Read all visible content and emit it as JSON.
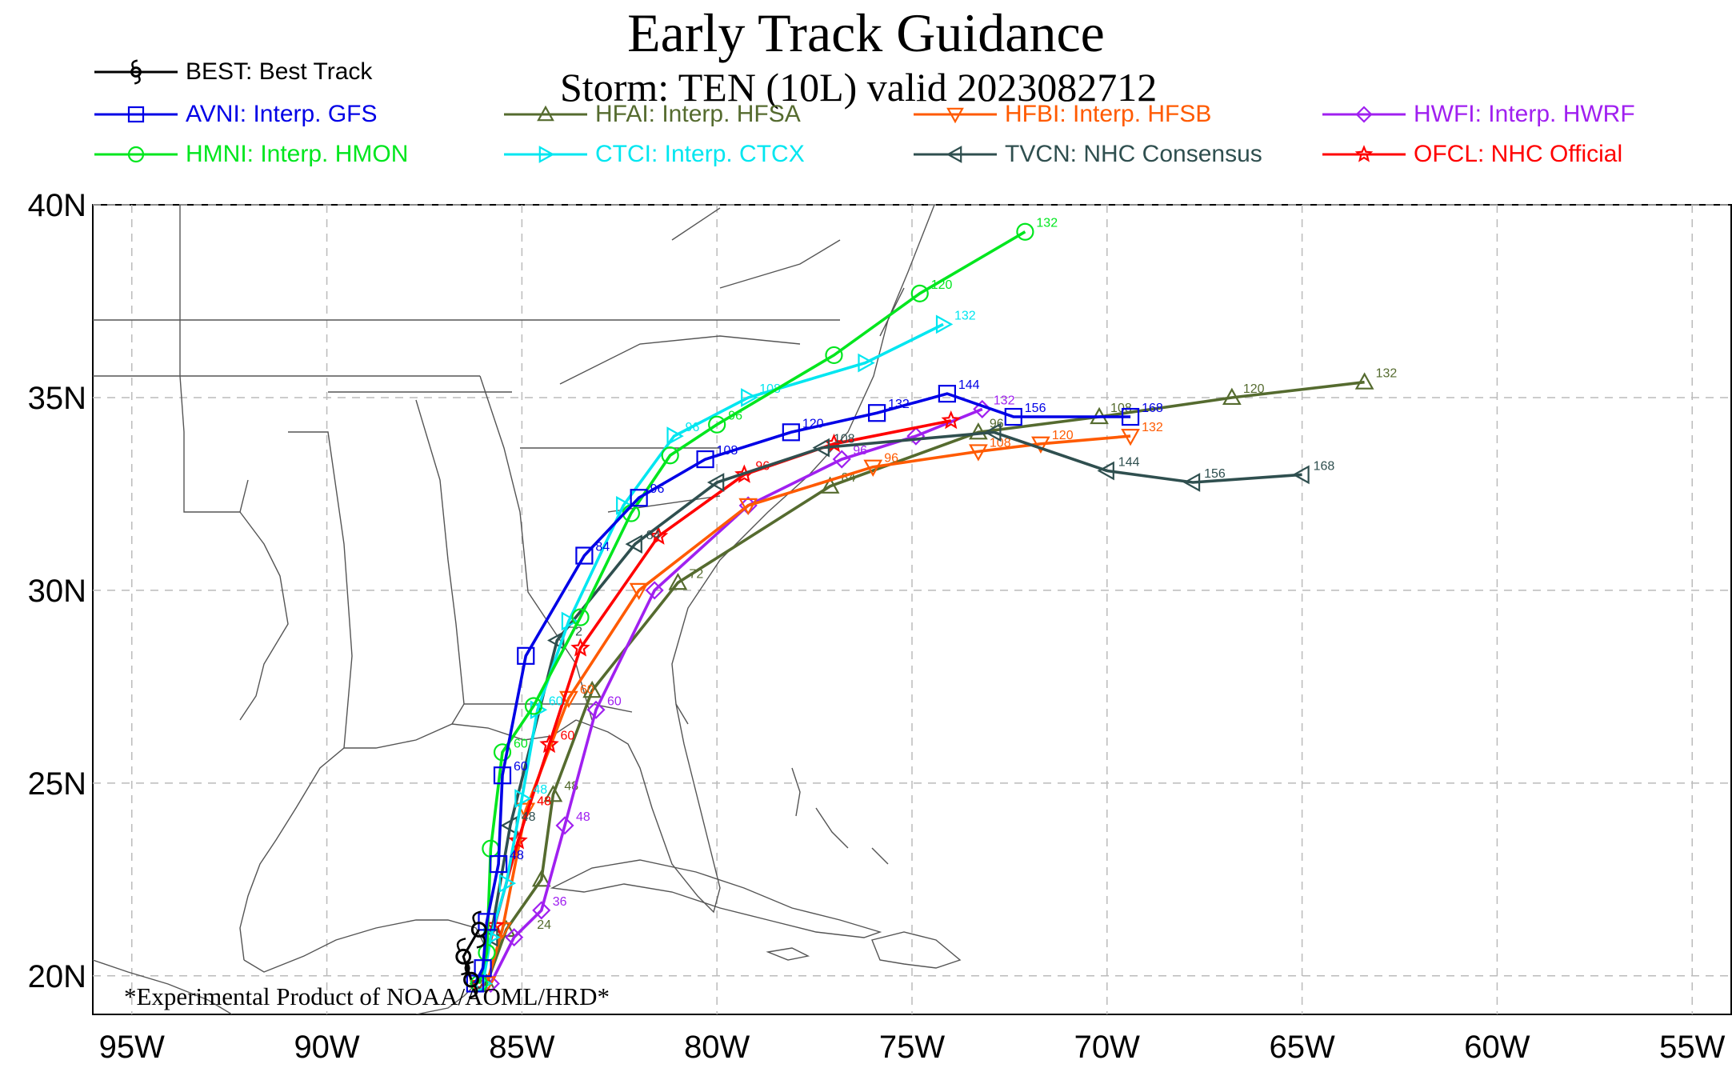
{
  "title": "Early Track Guidance",
  "subtitle": "Storm: TEN (10L) valid 2023082712",
  "footnote": "*Experimental Product of NOAA/AOML/HRD*",
  "axes": {
    "lon_labels": [
      "95W",
      "90W",
      "85W",
      "80W",
      "75W",
      "70W",
      "65W",
      "60W",
      "55W"
    ],
    "lat_labels": [
      "40N",
      "35N",
      "30N",
      "25N",
      "20N"
    ]
  },
  "legend": [
    {
      "code": "BEST",
      "label": "BEST: Best Track",
      "color": "#000000",
      "marker": "hurricane",
      "text_color": "#000000"
    },
    {
      "code": "AVNI",
      "label": "AVNI: Interp. GFS",
      "color": "#0000e6",
      "marker": "square",
      "text_color": "#0000e6"
    },
    {
      "code": "HFAI",
      "label": "HFAI: Interp. HFSA",
      "color": "#556b2f",
      "marker": "triangle-up",
      "text_color": "#556b2f"
    },
    {
      "code": "HFBI",
      "label": "HFBI: Interp. HFSB",
      "color": "#ff5a00",
      "marker": "triangle-down",
      "text_color": "#ff5a00"
    },
    {
      "code": "HWFI",
      "label": "HWFI: Interp. HWRF",
      "color": "#a020f0",
      "marker": "diamond",
      "text_color": "#a020f0"
    },
    {
      "code": "HMNI",
      "label": "HMNI: Interp. HMON",
      "color": "#00e61e",
      "marker": "circle",
      "text_color": "#00e61e"
    },
    {
      "code": "CTCI",
      "label": "CTCI: Interp. CTCX",
      "color": "#00e6f0",
      "marker": "triangle-right",
      "text_color": "#00e6f0"
    },
    {
      "code": "TVCN",
      "label": "TVCN: NHC Consensus",
      "color": "#2f4f4f",
      "marker": "triangle-left",
      "text_color": "#2f4f4f"
    },
    {
      "code": "OFCL",
      "label": "OFCL: NHC Official",
      "color": "#ff0000",
      "marker": "star",
      "text_color": "#ff0000"
    }
  ],
  "chart_data": {
    "type": "map",
    "region": "Gulf of Mexico / Western Atlantic",
    "lon_range": [
      -96,
      -54
    ],
    "lat_range": [
      19,
      40
    ],
    "grid": true,
    "tracks": [
      {
        "code": "BEST",
        "points": [
          [
            -86.1,
            21.2
          ],
          [
            -86.5,
            20.5
          ],
          [
            -86.3,
            19.9
          ]
        ]
      },
      {
        "code": "AVNI",
        "points": [
          [
            -86.2,
            19.8
          ],
          [
            -86.0,
            20.2
          ],
          [
            -85.9,
            21.4
          ],
          [
            -85.6,
            22.9
          ],
          [
            -85.5,
            25.2
          ],
          [
            -84.9,
            28.3
          ],
          [
            -83.4,
            30.9
          ],
          [
            -82.0,
            32.4
          ],
          [
            -80.3,
            33.4
          ],
          [
            -78.1,
            34.1
          ],
          [
            -75.9,
            34.6
          ],
          [
            -74.1,
            35.1
          ],
          [
            -72.4,
            34.5
          ],
          [
            -69.4,
            34.5
          ]
        ],
        "labels": [
          {
            "t": "48",
            "lon": -85.6,
            "lat": 22.9
          },
          {
            "t": "60",
            "lon": -85.5,
            "lat": 25.2
          },
          {
            "t": "84",
            "lon": -83.4,
            "lat": 30.9
          },
          {
            "t": "96",
            "lon": -82.0,
            "lat": 32.4
          },
          {
            "t": "108",
            "lon": -80.3,
            "lat": 33.4
          },
          {
            "t": "120",
            "lon": -78.1,
            "lat": 34.1
          },
          {
            "t": "132",
            "lon": -75.9,
            "lat": 34.6
          },
          {
            "t": "144",
            "lon": -74.1,
            "lat": 35.1
          },
          {
            "t": "156",
            "lon": -72.4,
            "lat": 34.5
          },
          {
            "t": "168",
            "lon": -69.4,
            "lat": 34.5
          }
        ]
      },
      {
        "code": "HMNI",
        "points": [
          [
            -86.1,
            19.8
          ],
          [
            -85.9,
            20.6
          ],
          [
            -85.8,
            23.3
          ],
          [
            -85.5,
            25.8
          ],
          [
            -84.7,
            27.0
          ],
          [
            -83.5,
            29.3
          ],
          [
            -82.2,
            32.0
          ],
          [
            -81.2,
            33.5
          ],
          [
            -80.0,
            34.3
          ],
          [
            -77.0,
            36.1
          ],
          [
            -74.8,
            37.7
          ],
          [
            -72.1,
            39.3
          ]
        ],
        "labels": [
          {
            "t": "60",
            "lon": -85.5,
            "lat": 25.8
          },
          {
            "t": "96",
            "lon": -80.0,
            "lat": 34.3
          },
          {
            "t": "120",
            "lon": -74.8,
            "lat": 37.7
          },
          {
            "t": "132",
            "lon": -72.1,
            "lat": 39.3
          }
        ]
      },
      {
        "code": "CTCI",
        "points": [
          [
            -86.0,
            19.8
          ],
          [
            -85.8,
            21.0
          ],
          [
            -85.4,
            22.4
          ],
          [
            -85.0,
            24.6
          ],
          [
            -84.6,
            26.9
          ],
          [
            -83.8,
            29.2
          ],
          [
            -82.4,
            32.2
          ],
          [
            -81.1,
            34.0
          ],
          [
            -79.2,
            35.0
          ],
          [
            -76.2,
            35.9
          ],
          [
            -74.2,
            36.9
          ]
        ],
        "labels": [
          {
            "t": "48",
            "lon": -85.0,
            "lat": 24.6
          },
          {
            "t": "60",
            "lon": -84.6,
            "lat": 26.9
          },
          {
            "t": "96",
            "lon": -81.1,
            "lat": 34.0
          },
          {
            "t": "108",
            "lon": -79.2,
            "lat": 35.0
          },
          {
            "t": "132",
            "lon": -74.2,
            "lat": 36.9
          }
        ]
      },
      {
        "code": "TVCN",
        "points": [
          [
            -86.1,
            19.8
          ],
          [
            -85.8,
            21.0
          ],
          [
            -85.3,
            23.9
          ],
          [
            -84.1,
            28.7
          ],
          [
            -82.1,
            31.2
          ],
          [
            -80.0,
            32.8
          ],
          [
            -77.3,
            33.7
          ],
          [
            -72.9,
            34.1
          ],
          [
            -70.0,
            33.1
          ],
          [
            -67.8,
            32.8
          ],
          [
            -65.0,
            33.0
          ]
        ],
        "labels": [
          {
            "t": "48",
            "lon": -85.3,
            "lat": 23.9
          },
          {
            "t": "72",
            "lon": -84.1,
            "lat": 28.7
          },
          {
            "t": "84",
            "lon": -82.1,
            "lat": 31.2
          },
          {
            "t": "108",
            "lon": -77.3,
            "lat": 33.7
          },
          {
            "t": "144",
            "lon": -70.0,
            "lat": 33.1
          },
          {
            "t": "156",
            "lon": -67.8,
            "lat": 32.8
          },
          {
            "t": "168",
            "lon": -65.0,
            "lat": 33.0
          }
        ]
      },
      {
        "code": "OFCL",
        "points": [
          [
            -86.1,
            19.8
          ],
          [
            -85.7,
            21.3
          ],
          [
            -85.1,
            23.5
          ],
          [
            -84.3,
            26.0
          ],
          [
            -83.5,
            28.5
          ],
          [
            -81.5,
            31.4
          ],
          [
            -79.3,
            33.0
          ],
          [
            -77.0,
            33.8
          ],
          [
            -74.0,
            34.4
          ]
        ],
        "labels": [
          {
            "t": "48",
            "lon": -84.9,
            "lat": 24.3
          },
          {
            "t": "60",
            "lon": -84.3,
            "lat": 26.0
          },
          {
            "t": "96",
            "lon": -79.3,
            "lat": 33.0
          }
        ]
      },
      {
        "code": "HFBI",
        "points": [
          [
            -85.9,
            19.8
          ],
          [
            -85.5,
            21.2
          ],
          [
            -84.9,
            24.3
          ],
          [
            -83.8,
            27.2
          ],
          [
            -82.0,
            30.0
          ],
          [
            -79.2,
            32.2
          ],
          [
            -76.0,
            33.2
          ],
          [
            -73.3,
            33.6
          ],
          [
            -71.7,
            33.8
          ],
          [
            -69.4,
            34.0
          ]
        ],
        "labels": [
          {
            "t": "48",
            "lon": -84.9,
            "lat": 24.3
          },
          {
            "t": "60",
            "lon": -83.8,
            "lat": 27.2
          },
          {
            "t": "96",
            "lon": -76.0,
            "lat": 33.2
          },
          {
            "t": "108",
            "lon": -73.3,
            "lat": 33.6
          },
          {
            "t": "120",
            "lon": -71.7,
            "lat": 33.8
          },
          {
            "t": "132",
            "lon": -69.4,
            "lat": 34.0
          }
        ]
      },
      {
        "code": "HFAI",
        "points": [
          [
            -85.9,
            19.8
          ],
          [
            -85.4,
            21.2
          ],
          [
            -84.5,
            22.5
          ],
          [
            -84.2,
            24.7
          ],
          [
            -83.2,
            27.4
          ],
          [
            -81.0,
            30.2
          ],
          [
            -77.1,
            32.7
          ],
          [
            -73.3,
            34.1
          ],
          [
            -70.2,
            34.5
          ],
          [
            -66.8,
            35.0
          ],
          [
            -63.4,
            35.4
          ]
        ],
        "labels": [
          {
            "t": "24",
            "lon": -84.9,
            "lat": 21.1
          },
          {
            "t": "48",
            "lon": -84.2,
            "lat": 24.7
          },
          {
            "t": "72",
            "lon": -81.0,
            "lat": 30.2
          },
          {
            "t": "84",
            "lon": -77.1,
            "lat": 32.7
          },
          {
            "t": "96",
            "lon": -73.3,
            "lat": 34.1
          },
          {
            "t": "108",
            "lon": -70.2,
            "lat": 34.5
          },
          {
            "t": "120",
            "lon": -66.8,
            "lat": 35.0
          },
          {
            "t": "132",
            "lon": -63.4,
            "lat": 35.4
          }
        ]
      },
      {
        "code": "HWFI",
        "points": [
          [
            -85.8,
            19.8
          ],
          [
            -85.2,
            21.0
          ],
          [
            -84.5,
            21.7
          ],
          [
            -83.9,
            23.9
          ],
          [
            -83.1,
            26.9
          ],
          [
            -81.6,
            30.0
          ],
          [
            -79.2,
            32.2
          ],
          [
            -76.8,
            33.4
          ],
          [
            -74.9,
            34.0
          ],
          [
            -73.2,
            34.7
          ]
        ],
        "labels": [
          {
            "t": "36",
            "lon": -84.5,
            "lat": 21.7
          },
          {
            "t": "48",
            "lon": -83.9,
            "lat": 23.9
          },
          {
            "t": "60",
            "lon": -83.1,
            "lat": 26.9
          },
          {
            "t": "96",
            "lon": -76.8,
            "lat": 33.4
          },
          {
            "t": "132",
            "lon": -73.2,
            "lat": 34.7
          }
        ]
      }
    ]
  }
}
